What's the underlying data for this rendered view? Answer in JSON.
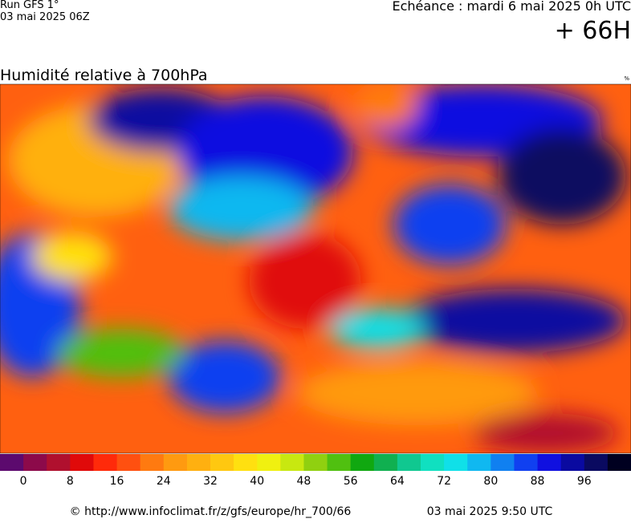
{
  "header": {
    "run": "Run GFS 1°",
    "run_date": "03 mai 2025 06Z",
    "valid": "Echéance : mardi 6 mai 2025 0h UTC",
    "lead": "+ 66H"
  },
  "map": {
    "title": "Humidité relative à 700hPa",
    "unit": "%"
  },
  "colorbar": {
    "colors": [
      "#5c0a6e",
      "#8c0a4a",
      "#b0102e",
      "#e00a0a",
      "#ff2a0a",
      "#ff5010",
      "#ff7a10",
      "#ff9a10",
      "#ffb010",
      "#ffc810",
      "#ffe010",
      "#f0f010",
      "#c8e810",
      "#90d010",
      "#50c010",
      "#10a810",
      "#10b050",
      "#10c890",
      "#10e0c0",
      "#10e0e8",
      "#10b8f0",
      "#1080f0",
      "#1040f0",
      "#1010e0",
      "#0a0aa0",
      "#0a0a60",
      "#000020"
    ],
    "ticks": [
      0,
      8,
      16,
      24,
      32,
      40,
      48,
      56,
      64,
      72,
      80,
      88,
      96
    ]
  },
  "footer": {
    "source": "© http://www.infoclimat.fr/z/gfs/europe/hr_700/66",
    "timestamp": "03 mai 2025  9:50 UTC"
  }
}
